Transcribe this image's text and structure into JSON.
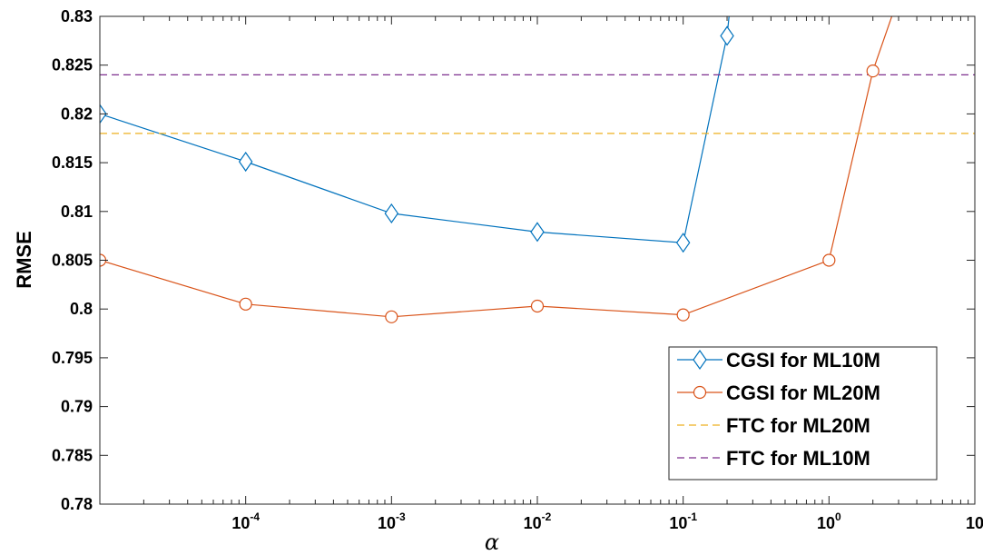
{
  "chart_data": {
    "type": "line",
    "xscale": "log",
    "xlabel": "α",
    "ylabel": "RMSE",
    "xlim": [
      1e-05,
      10
    ],
    "ylim": [
      0.78,
      0.83
    ],
    "grid": false,
    "legend_position": "bottom-right",
    "x_ticks": [
      {
        "base": "10",
        "exp": "-4",
        "value": 0.0001
      },
      {
        "base": "10",
        "exp": "-3",
        "value": 0.001
      },
      {
        "base": "10",
        "exp": "-2",
        "value": 0.01
      },
      {
        "base": "10",
        "exp": "-1",
        "value": 0.1
      },
      {
        "base": "10",
        "exp": "0",
        "value": 1
      },
      {
        "base": "10",
        "exp": "",
        "value": 10
      }
    ],
    "y_ticks": [
      "0.78",
      "0.785",
      "0.79",
      "0.795",
      "0.8",
      "0.805",
      "0.81",
      "0.815",
      "0.82",
      "0.825",
      "0.83"
    ],
    "series": [
      {
        "name": "CGSI for ML10M",
        "color": "#0072BD",
        "marker": "diamond",
        "line": "solid",
        "x": [
          1e-05,
          0.0001,
          0.001,
          0.01,
          0.1,
          0.2,
          0.25
        ],
        "y": [
          0.82,
          0.8151,
          0.8098,
          0.8079,
          0.8068,
          0.828,
          0.842
        ]
      },
      {
        "name": "CGSI for ML20M",
        "color": "#D95319",
        "marker": "circle",
        "line": "solid",
        "x": [
          1e-05,
          0.0001,
          0.001,
          0.01,
          0.1,
          1,
          2,
          3
        ],
        "y": [
          0.805,
          0.8005,
          0.7992,
          0.8003,
          0.7994,
          0.805,
          0.8244,
          0.832
        ]
      },
      {
        "name": "FTC for ML20M",
        "color": "#EDB120",
        "marker": "none",
        "line": "dashed",
        "x": [
          1e-05,
          10
        ],
        "y": [
          0.818,
          0.818
        ]
      },
      {
        "name": "FTC for ML10M",
        "color": "#7E2F8E",
        "marker": "none",
        "line": "dashed",
        "x": [
          1e-05,
          10
        ],
        "y": [
          0.824,
          0.824
        ]
      }
    ],
    "marker_points": {
      "CGSI for ML10M": [
        1e-05,
        0.0001,
        0.001,
        0.01,
        0.1,
        0.2
      ],
      "CGSI for ML20M": [
        1e-05,
        0.0001,
        0.001,
        0.01,
        0.1,
        1,
        2
      ]
    }
  }
}
